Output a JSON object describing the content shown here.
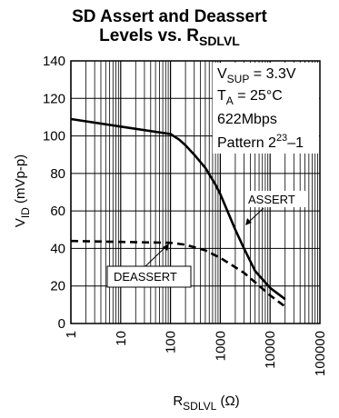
{
  "chart_data": {
    "type": "line",
    "title_line1": "SD Assert and Deassert",
    "title_line2_prefix": "Levels vs. R",
    "title_line2_sub": "SDLVL",
    "ylabel_main": "V",
    "ylabel_sub": "ID",
    "ylabel_unit": " (mVp-p)",
    "xlabel_main": "R",
    "xlabel_sub": "SDLVL",
    "xlabel_unit": " (Ω)",
    "x_scale": "log",
    "xlim": [
      1,
      100000
    ],
    "ylim": [
      0,
      140
    ],
    "x_ticks": [
      "1",
      "10",
      "100",
      "1000",
      "10000",
      "100000"
    ],
    "y_ticks": [
      "0",
      "20",
      "40",
      "60",
      "80",
      "100",
      "120",
      "140"
    ],
    "grid": true,
    "annotations": {
      "vsup_main": "V",
      "vsup_sub": "SUP",
      "vsup_value": " = 3.3V",
      "ta_main": "T",
      "ta_sub": "A",
      "ta_value": " = 25°C",
      "rate": "622Mbps",
      "pattern_prefix": "Pattern 2",
      "pattern_sup": "23",
      "pattern_suffix": "–1"
    },
    "series": [
      {
        "name": "ASSERT",
        "style": "solid",
        "x": [
          1,
          10,
          100,
          150,
          200,
          300,
          500,
          800,
          1000,
          2000,
          3000,
          5000,
          10000,
          20000
        ],
        "y": [
          109,
          105,
          101,
          98,
          95,
          90,
          83,
          74,
          69,
          50,
          40,
          28,
          19,
          13
        ]
      },
      {
        "name": "DEASSERT",
        "style": "dashed",
        "x": [
          1,
          10,
          100,
          200,
          500,
          1000,
          2000,
          3000,
          5000,
          10000,
          20000
        ],
        "y": [
          44,
          43.5,
          43,
          42,
          39,
          35,
          30,
          27,
          22,
          15,
          9
        ]
      }
    ]
  }
}
